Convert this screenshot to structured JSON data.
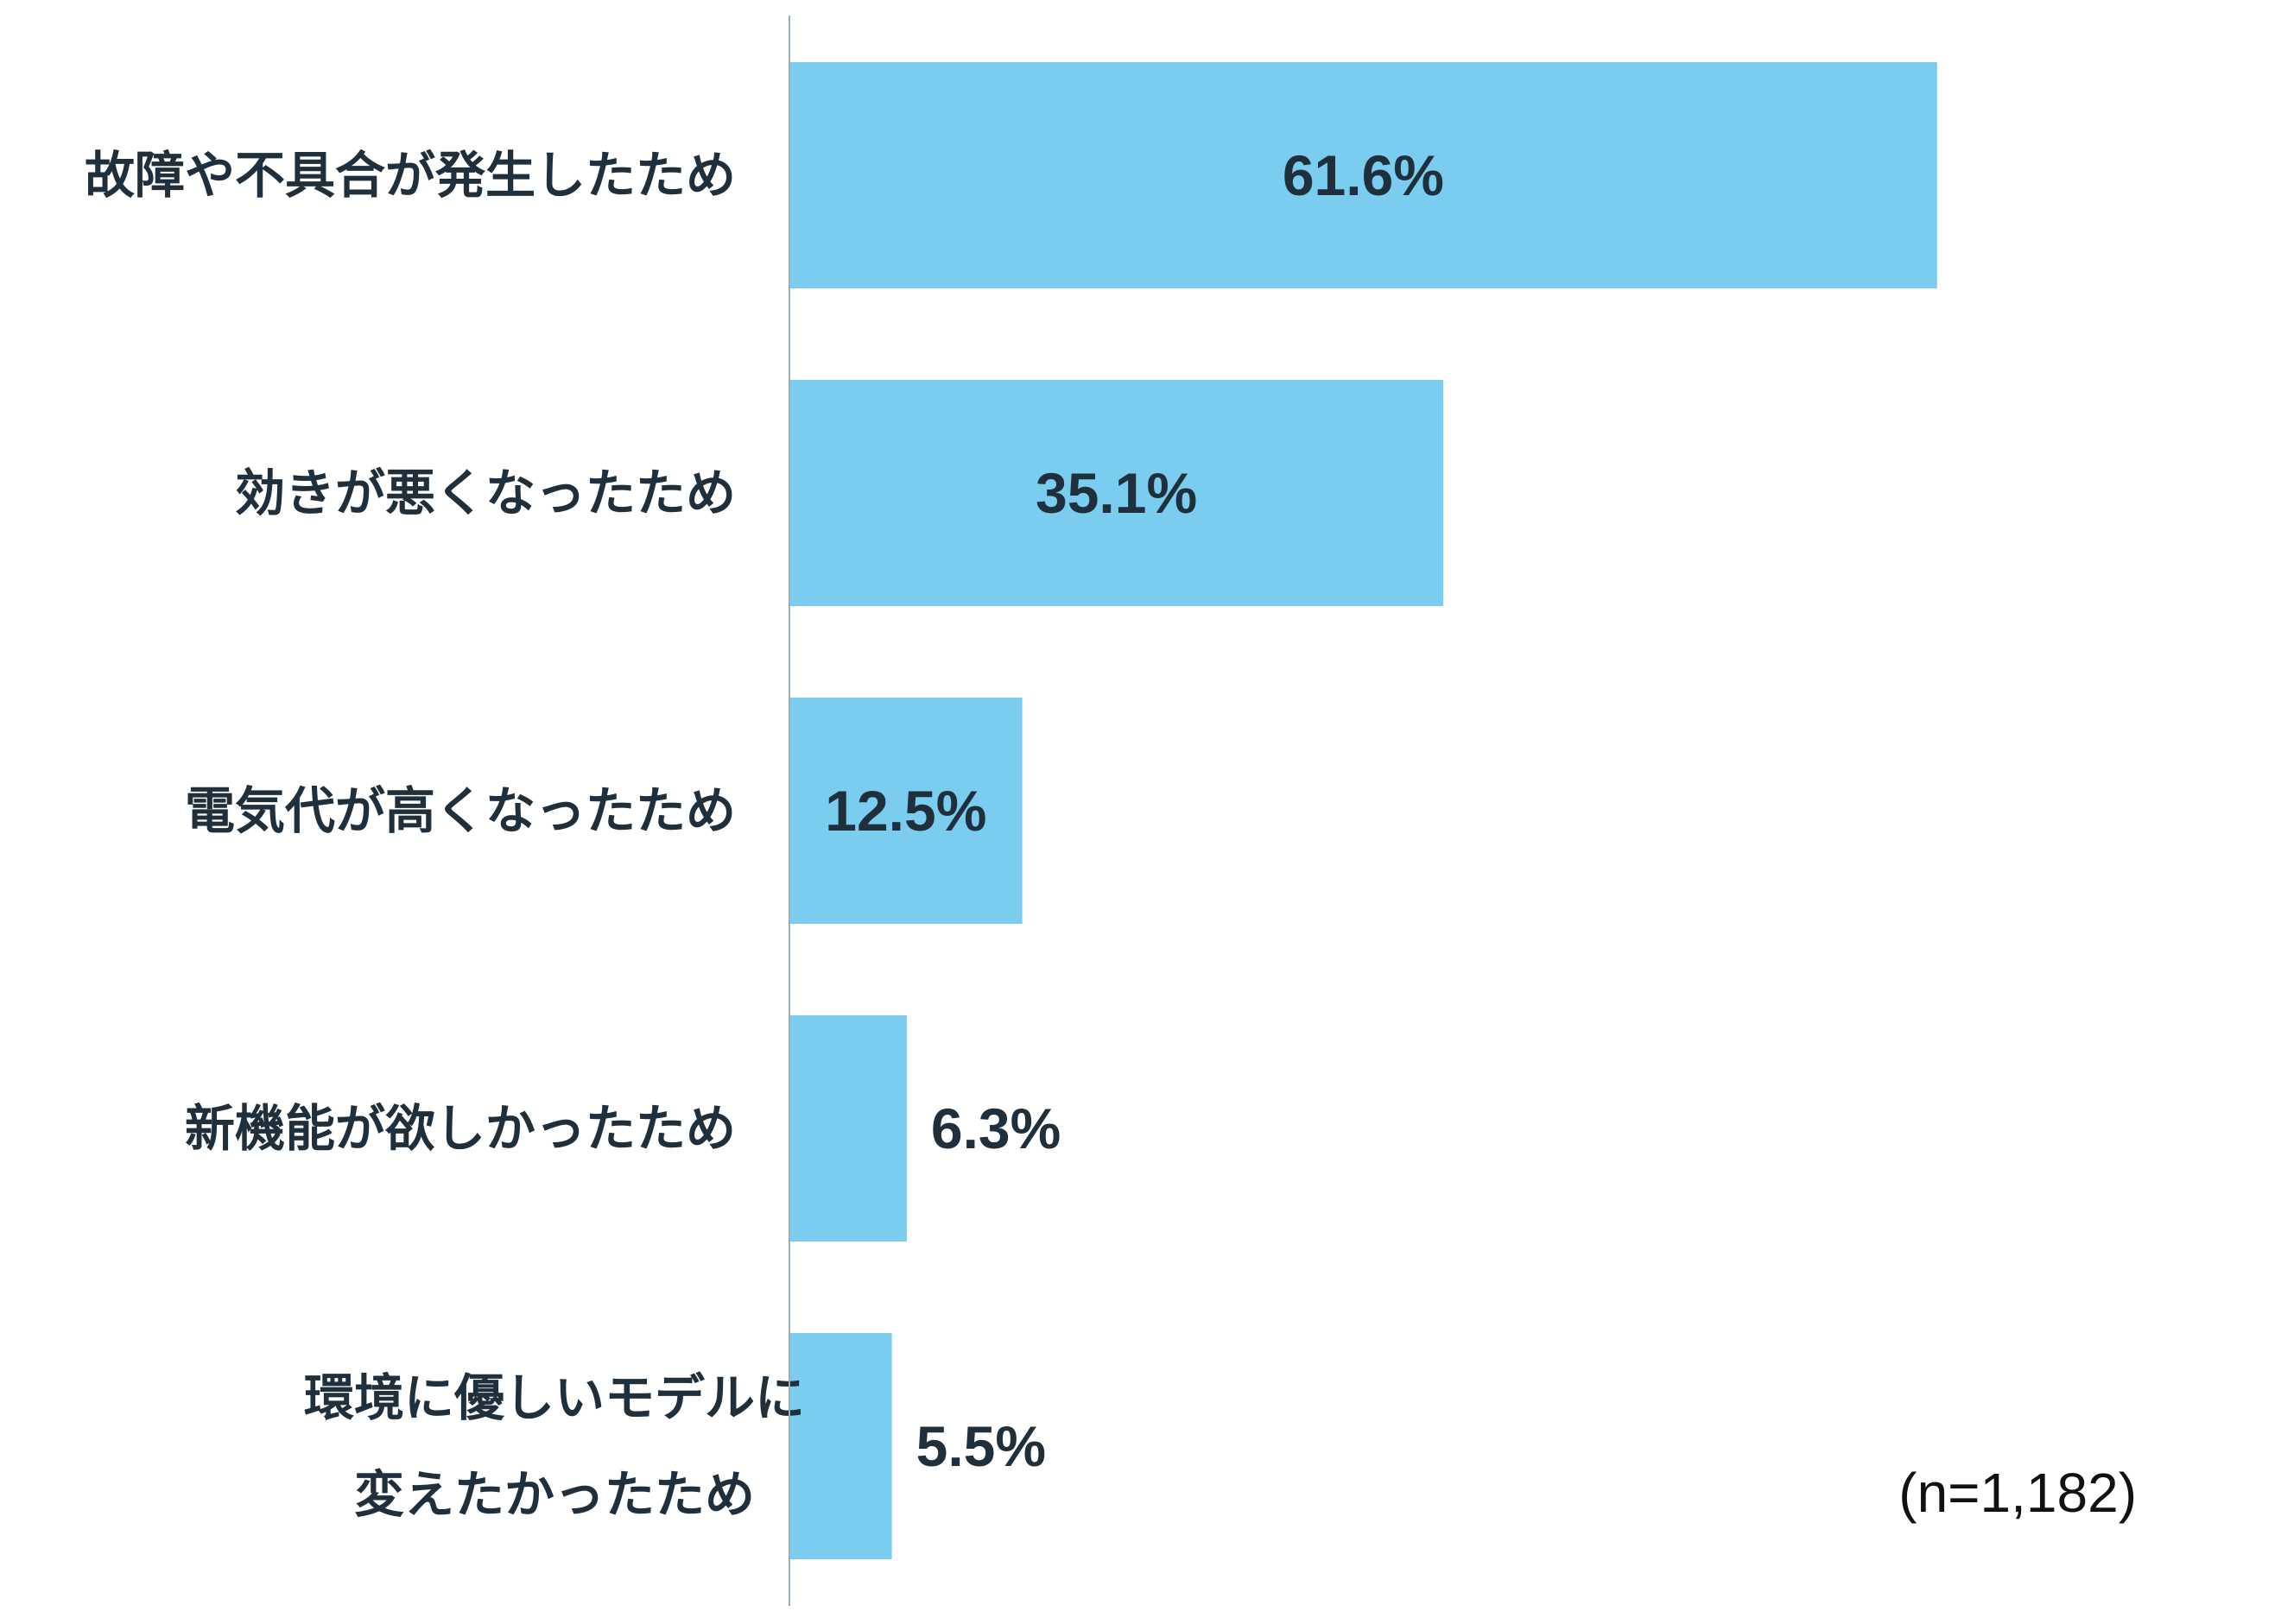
{
  "chart_data": {
    "type": "bar",
    "orientation": "horizontal",
    "categories": [
      [
        "故障や不具合が発生したため"
      ],
      [
        "効きが悪くなったため"
      ],
      [
        "電気代が高くなったため"
      ],
      [
        "新機能が欲しかったため"
      ],
      [
        "環境に優しいモデルに",
        "変えたかったため"
      ]
    ],
    "values": [
      61.6,
      35.1,
      12.5,
      6.3,
      5.5
    ],
    "value_labels": [
      "61.6%",
      "35.1%",
      "12.5%",
      "6.3%",
      "5.5%"
    ],
    "xlim": [
      0,
      70
    ],
    "grid": false,
    "legend": "none",
    "bar_color": "#7acdee",
    "text_color": "#1f2f3c",
    "axis_color": "#9aaeb8",
    "note": "(n=1,182)"
  }
}
